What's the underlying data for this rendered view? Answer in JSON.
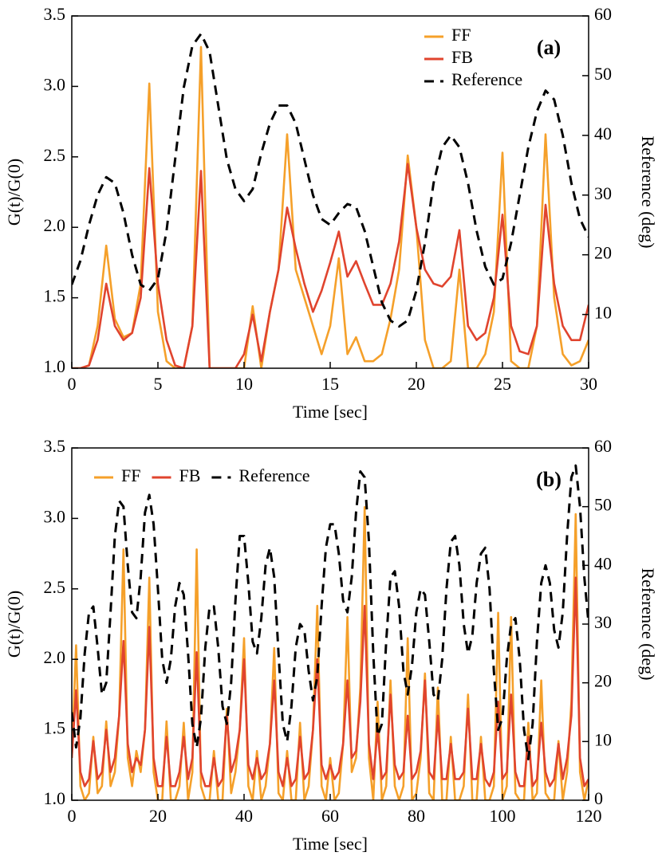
{
  "chart_data": [
    {
      "type": "line",
      "annotation": "(a)",
      "legend": "upper right",
      "xlabel": "Time [sec]",
      "ylabel": "G(t)/G(0)",
      "y2label": "Reference (deg)",
      "xlim": [
        0,
        30
      ],
      "xticks": [
        0,
        5,
        10,
        15,
        20,
        25,
        30
      ],
      "ylim": [
        1,
        3.5
      ],
      "yticks": [
        {
          "value": 1,
          "label": "1.0"
        },
        1.5,
        {
          "value": 2,
          "label": "2.0"
        },
        2.5,
        {
          "value": 3,
          "label": "3.0"
        },
        3.5
      ],
      "y2lim": [
        1,
        60
      ],
      "y2ticks": [
        10,
        20,
        30,
        40,
        50,
        60
      ],
      "x": [
        0,
        0.5,
        1,
        1.5,
        2,
        2.5,
        3,
        3.5,
        4,
        4.5,
        5,
        5.5,
        6,
        6.5,
        7,
        7.5,
        8,
        8.5,
        9,
        9.5,
        10,
        10.5,
        11,
        11.5,
        12,
        12.5,
        13,
        13.5,
        14,
        14.5,
        15,
        15.5,
        16,
        16.5,
        17,
        17.5,
        18,
        18.5,
        19,
        19.5,
        20,
        20.5,
        21,
        21.5,
        22,
        22.5,
        23,
        23.5,
        24,
        24.5,
        25,
        25.5,
        26,
        26.5,
        27,
        27.5,
        28,
        28.5,
        29,
        29.5,
        30
      ],
      "series": [
        {
          "name": "FF",
          "color": "#f5a02a",
          "values": [
            1.0,
            1.0,
            1.02,
            1.3,
            1.87,
            1.35,
            1.22,
            1.25,
            1.6,
            3.02,
            1.4,
            1.05,
            1.0,
            1.0,
            1.3,
            3.28,
            1.0,
            1.0,
            1.0,
            1.0,
            1.0,
            1.44,
            1.0,
            1.4,
            1.7,
            2.66,
            1.7,
            1.5,
            1.3,
            1.1,
            1.3,
            1.78,
            1.1,
            1.22,
            1.05,
            1.05,
            1.1,
            1.35,
            1.7,
            2.51,
            2.0,
            1.2,
            1.0,
            1.0,
            1.05,
            1.7,
            1.0,
            1.0,
            1.1,
            1.4,
            2.53,
            1.05,
            1.0,
            1.0,
            1.3,
            2.66,
            1.5,
            1.1,
            1.02,
            1.05,
            1.2
          ]
        },
        {
          "name": "FB",
          "color": "#e0442e",
          "values": [
            1.0,
            1.0,
            1.02,
            1.2,
            1.6,
            1.3,
            1.2,
            1.25,
            1.5,
            2.42,
            1.6,
            1.2,
            1.02,
            1.0,
            1.3,
            2.4,
            1.0,
            1.0,
            1.0,
            1.0,
            1.1,
            1.38,
            1.05,
            1.4,
            1.7,
            2.14,
            1.85,
            1.6,
            1.4,
            1.55,
            1.75,
            1.97,
            1.65,
            1.76,
            1.6,
            1.45,
            1.45,
            1.6,
            1.9,
            2.45,
            2.0,
            1.7,
            1.6,
            1.58,
            1.65,
            1.98,
            1.3,
            1.2,
            1.25,
            1.5,
            2.09,
            1.3,
            1.12,
            1.1,
            1.3,
            2.16,
            1.6,
            1.3,
            1.2,
            1.2,
            1.45
          ]
        },
        {
          "name": "Reference",
          "color": "#000000",
          "dashed": true,
          "axis": "y2",
          "values": [
            15,
            19,
            25,
            30,
            33,
            32,
            27,
            20,
            15,
            14,
            16,
            24,
            36,
            48,
            55,
            57,
            54,
            45,
            36,
            31,
            29,
            31,
            37,
            42,
            45,
            45,
            42,
            36,
            30,
            26,
            25,
            27,
            28.5,
            28,
            24,
            18,
            12,
            9,
            8,
            9,
            14,
            22,
            32,
            38,
            40,
            38,
            32,
            24,
            18,
            15,
            16,
            22,
            30,
            38,
            44,
            47.5,
            46,
            40,
            32,
            26,
            23
          ]
        }
      ]
    },
    {
      "type": "line",
      "annotation": "(b)",
      "legend": "upper left",
      "xlabel": "Time [sec]",
      "ylabel": "G(t)/G(0)",
      "y2label": "Reference (deg)",
      "xlim": [
        0,
        120
      ],
      "xticks": [
        0,
        20,
        40,
        60,
        80,
        100,
        120
      ],
      "ylim": [
        1,
        3.5
      ],
      "yticks": [
        {
          "value": 1,
          "label": "1.0"
        },
        1.5,
        {
          "value": 2,
          "label": "2.0"
        },
        2.5,
        {
          "value": 3,
          "label": "3.0"
        },
        3.5
      ],
      "y2lim": [
        0,
        60
      ],
      "y2ticks": [
        0,
        10,
        20,
        30,
        40,
        50,
        60
      ],
      "x": [
        0,
        1,
        2,
        3,
        4,
        5,
        6,
        7,
        8,
        9,
        10,
        11,
        12,
        13,
        14,
        15,
        16,
        17,
        18,
        19,
        20,
        21,
        22,
        23,
        24,
        25,
        26,
        27,
        28,
        29,
        30,
        31,
        32,
        33,
        34,
        35,
        36,
        37,
        38,
        39,
        40,
        41,
        42,
        43,
        44,
        45,
        46,
        47,
        48,
        49,
        50,
        51,
        52,
        53,
        54,
        55,
        56,
        57,
        58,
        59,
        60,
        61,
        62,
        63,
        64,
        65,
        66,
        67,
        68,
        69,
        70,
        71,
        72,
        73,
        74,
        75,
        76,
        77,
        78,
        79,
        80,
        81,
        82,
        83,
        84,
        85,
        86,
        87,
        88,
        89,
        90,
        91,
        92,
        93,
        94,
        95,
        96,
        97,
        98,
        99,
        100,
        101,
        102,
        103,
        104,
        105,
        106,
        107,
        108,
        109,
        110,
        111,
        112,
        113,
        114,
        115,
        116,
        117,
        118,
        119,
        120
      ],
      "series": [
        {
          "name": "FF",
          "color": "#f5a02a",
          "values": [
            1.3,
            2.1,
            1.1,
            1.0,
            1.05,
            1.45,
            1.05,
            1.1,
            1.56,
            1.1,
            1.2,
            1.6,
            2.78,
            1.3,
            1.1,
            1.35,
            1.2,
            1.5,
            2.58,
            1.2,
            1.0,
            1.0,
            1.56,
            1.0,
            1.0,
            1.1,
            1.55,
            1.0,
            1.2,
            2.78,
            1.1,
            1.0,
            1.0,
            1.35,
            1.0,
            1.0,
            1.65,
            1.05,
            1.2,
            1.5,
            2.15,
            1.1,
            1.0,
            1.35,
            1.0,
            1.1,
            1.4,
            2.08,
            1.05,
            1.0,
            1.35,
            1.0,
            1.0,
            1.55,
            1.0,
            1.1,
            1.5,
            2.38,
            1.1,
            1.0,
            1.3,
            1.0,
            1.05,
            1.4,
            2.3,
            1.2,
            1.3,
            1.8,
            3.08,
            1.3,
            1.0,
            1.7,
            1.0,
            1.1,
            1.85,
            1.1,
            1.0,
            1.1,
            2.15,
            1.0,
            1.05,
            1.3,
            1.9,
            1.05,
            1.0,
            1.8,
            1.0,
            1.0,
            1.45,
            1.0,
            1.0,
            1.1,
            1.75,
            1.0,
            1.0,
            1.45,
            1.0,
            1.0,
            1.1,
            2.33,
            1.0,
            1.1,
            2.3,
            1.05,
            1.0,
            1.0,
            1.55,
            1.0,
            1.05,
            1.85,
            1.05,
            1.0,
            1.0,
            1.42,
            1.0,
            1.2,
            1.7,
            3.03,
            1.2,
            1.0,
            1.15
          ]
        },
        {
          "name": "FB",
          "color": "#e0442e",
          "values": [
            1.3,
            1.78,
            1.2,
            1.1,
            1.15,
            1.42,
            1.15,
            1.2,
            1.5,
            1.2,
            1.3,
            1.6,
            2.13,
            1.4,
            1.2,
            1.3,
            1.25,
            1.5,
            2.23,
            1.3,
            1.1,
            1.1,
            1.45,
            1.1,
            1.1,
            1.2,
            1.45,
            1.15,
            1.3,
            2.05,
            1.2,
            1.1,
            1.1,
            1.3,
            1.1,
            1.15,
            1.6,
            1.2,
            1.3,
            1.5,
            2.0,
            1.25,
            1.15,
            1.3,
            1.15,
            1.2,
            1.4,
            1.85,
            1.2,
            1.1,
            1.3,
            1.1,
            1.15,
            1.45,
            1.15,
            1.2,
            1.5,
            2.0,
            1.25,
            1.15,
            1.25,
            1.15,
            1.2,
            1.4,
            1.85,
            1.3,
            1.35,
            1.7,
            2.38,
            1.4,
            1.15,
            1.5,
            1.15,
            1.2,
            1.75,
            1.25,
            1.15,
            1.2,
            1.6,
            1.15,
            1.2,
            1.35,
            1.85,
            1.2,
            1.15,
            1.6,
            1.15,
            1.15,
            1.4,
            1.15,
            1.15,
            1.2,
            1.65,
            1.15,
            1.15,
            1.4,
            1.15,
            1.1,
            1.2,
            1.7,
            1.15,
            1.2,
            1.75,
            1.2,
            1.1,
            1.1,
            1.45,
            1.1,
            1.15,
            1.55,
            1.2,
            1.1,
            1.15,
            1.4,
            1.15,
            1.3,
            1.6,
            2.58,
            1.3,
            1.1,
            1.15
          ]
        },
        {
          "name": "Reference",
          "color": "#000000",
          "dashed": true,
          "axis": "y2",
          "values": [
            15,
            9,
            14,
            25,
            32,
            33,
            26,
            18,
            20,
            32,
            45,
            51,
            50,
            40,
            32,
            31,
            38,
            49,
            52,
            47,
            36,
            24,
            20,
            24,
            33,
            37,
            35,
            25,
            13,
            9,
            14,
            26,
            33,
            33,
            26,
            16,
            13,
            20,
            34,
            45,
            45,
            37,
            27,
            25,
            31,
            40,
            43,
            38,
            25,
            13,
            10,
            16,
            26,
            30,
            29,
            22,
            17,
            21,
            33,
            43,
            47,
            47,
            42,
            34,
            32,
            38,
            49,
            56,
            55,
            44,
            25,
            11,
            13,
            27,
            38,
            39,
            33,
            22,
            18,
            23,
            32,
            36,
            35,
            27,
            18,
            17,
            24,
            36,
            44,
            45,
            40,
            30,
            25,
            28,
            37,
            42,
            43,
            36,
            22,
            12,
            14,
            24,
            30,
            31,
            24,
            12,
            7,
            13,
            27,
            37,
            40,
            37,
            29,
            26,
            32,
            45,
            55,
            57,
            50,
            38,
            30
          ]
        }
      ]
    }
  ]
}
